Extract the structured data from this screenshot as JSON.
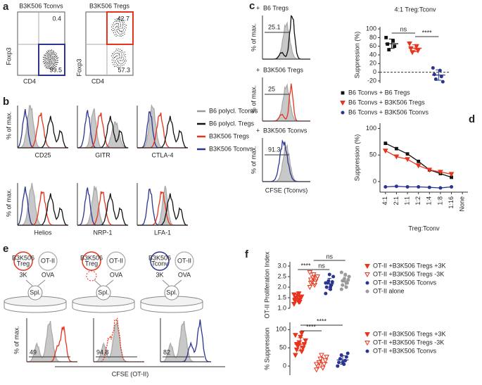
{
  "panel_labels": [
    "a",
    "b",
    "c",
    "d",
    "e",
    "f"
  ],
  "panel_a": {
    "plots": [
      {
        "title": "B3K506 Tconvs",
        "gate_top": 0.4,
        "gate_bottom": 99.5
      },
      {
        "title": "B3K506 Tregs",
        "gate_top": 42.7,
        "gate_bottom": 57.3
      }
    ],
    "ylabel": "Foxp3",
    "xlabel": "CD4"
  },
  "panel_b": {
    "ylabel": "% of max.",
    "markers": [
      "CD25",
      "GITR",
      "CTLA-4",
      "Helios",
      "NRP-1",
      "LFA-1"
    ],
    "legend": [
      {
        "name": "B6 polycl. Tconvs",
        "color": "#9a9a9a"
      },
      {
        "name": "B6 polycl. Tregs",
        "color": "#111111"
      },
      {
        "name": "B3K506  Tregs",
        "color": "#e8341c"
      },
      {
        "name": "B3K506 Tconvs",
        "color": "#2b3590"
      }
    ]
  },
  "panel_c": {
    "plots": [
      {
        "prefix": "+",
        "name": "B6  Tregs",
        "color": "#111111",
        "gate": 25.1
      },
      {
        "prefix": "+",
        "name": "B3K506 Tregs",
        "color": "#e8341c",
        "gate": 25
      },
      {
        "prefix": "+",
        "name": "B3K506 Tconvs",
        "color": "#2b3590",
        "gate": 91.3
      }
    ],
    "ylabel": "% of max.",
    "xlabel": "CFSE (Tconvs)"
  },
  "panel_e": {
    "schemes": [
      {
        "cell_line1": "B3K506",
        "cell_line2": "Treg",
        "cell_color": "#e8341c",
        "peptide": "3K",
        "other": "OT-II",
        "antigen": "OVA",
        "spleen": "Spl.",
        "gate": 49
      },
      {
        "cell_line1": "B3K506",
        "cell_line2": "Treg",
        "cell_color": "#e8341c",
        "other": "OT-II",
        "antigen": "OVA",
        "spleen": "Spl.",
        "gate": 94.8
      },
      {
        "cell_line1": "B3K506",
        "cell_line2": "Tconv",
        "cell_color": "#2b3590",
        "peptide": "3K",
        "other": "OT-II",
        "antigen": "OVA",
        "spleen": "Spl.",
        "gate": 82
      }
    ],
    "ylabel": "% of max.",
    "xlabel": "CFSE (OT-II)"
  },
  "chart_data": [
    {
      "type": "dot",
      "title": "4:1 Treg:Tconv",
      "ylabel": "Suppression (%)",
      "ylim": [
        -25,
        105
      ],
      "yticks": [
        -20,
        0,
        20,
        40,
        60,
        80,
        100
      ],
      "zero_line": true,
      "series": [
        {
          "name": "B6 Tconvs + B6 Tregs",
          "color": "#111111",
          "marker": "square",
          "values": [
            80,
            72,
            65,
            60,
            52
          ]
        },
        {
          "name": "B6 Tconvs + B3K506 Tregs",
          "color": "#e8341c",
          "marker": "triangle",
          "values": [
            66,
            60,
            55,
            50,
            46
          ]
        },
        {
          "name": "B6 Tconvs + B3K506 Tconvs",
          "color": "#2b3590",
          "marker": "circle",
          "values": [
            10,
            4,
            -5,
            -10,
            -16,
            -22
          ]
        }
      ],
      "annotations": [
        "ns",
        "****"
      ]
    },
    {
      "type": "line",
      "ylabel": "Suppression (%)",
      "xlabel": "Treg:Tconv",
      "categories": [
        "4:1",
        "2:1",
        "1:1",
        "1:2",
        "1:4",
        "1:8",
        "1:16",
        "None"
      ],
      "ylim": [
        -20,
        110
      ],
      "yticks": [
        0,
        50,
        100
      ],
      "series": [
        {
          "color": "#111111",
          "marker": "square",
          "values": [
            72,
            62,
            52,
            38,
            22,
            15,
            8,
            null
          ]
        },
        {
          "color": "#e8341c",
          "marker": "triangle",
          "values": [
            58,
            47,
            42,
            30,
            22,
            18,
            14,
            null
          ]
        },
        {
          "color": "#2b3590",
          "marker": "circle",
          "values": [
            -10,
            -9,
            -10,
            -10,
            -11,
            -12,
            -10,
            null
          ]
        }
      ]
    },
    {
      "type": "dot",
      "ylabel": "OT-II Proliferation Index",
      "ylim": [
        1,
        3.2
      ],
      "yticks": [
        {
          "value": 1,
          "label": "1.0"
        },
        1.5,
        {
          "value": 2,
          "label": "2.0"
        },
        2.5,
        {
          "value": 3,
          "label": "3.0"
        }
      ],
      "series": [
        {
          "name": "OT-II +B3K506 Tregs +3K",
          "color": "#e8341c",
          "marker": "triangle",
          "values": [
            1.2,
            1.3,
            1.35,
            1.4,
            1.45,
            1.5,
            1.5,
            1.55,
            1.6,
            1.65,
            1.7,
            1.4,
            1.3
          ]
        },
        {
          "name": "OT-II +B3K506 Tregs -3K",
          "color": "#e8341c",
          "marker": "open-triangle",
          "values": [
            2.0,
            2.1,
            2.2,
            2.3,
            2.3,
            2.4,
            2.45,
            2.5,
            2.6,
            2.7,
            2.2,
            2.35
          ]
        },
        {
          "name": "OT-II +B3K506 Tconvs",
          "color": "#2b3590",
          "marker": "circle",
          "values": [
            1.7,
            1.9,
            2.0,
            2.1,
            2.2,
            2.25,
            2.3,
            2.5,
            2.6,
            2.2,
            2.0
          ]
        },
        {
          "name": "OT-II alone",
          "color": "#9a9a9a",
          "marker": "circle",
          "values": [
            1.9,
            2.0,
            2.1,
            2.2,
            2.3,
            2.35,
            2.4,
            2.5,
            2.6,
            2.7,
            2.2,
            2.3
          ]
        }
      ],
      "annotations": [
        "****",
        "ns",
        "ns"
      ]
    },
    {
      "type": "dot",
      "ylabel": "% Suppression",
      "ylim": [
        -25,
        120
      ],
      "yticks": [
        0,
        50,
        100
      ],
      "series": [
        {
          "name": "OT-II +B3K506 Tregs +3K",
          "color": "#e8341c",
          "marker": "triangle",
          "values": [
            30,
            40,
            45,
            50,
            55,
            60,
            65,
            70,
            80,
            85,
            90,
            60,
            50
          ]
        },
        {
          "name": "OT-II +B3K506 Tregs -3K",
          "color": "#e8341c",
          "marker": "open-triangle",
          "values": [
            -10,
            -5,
            0,
            5,
            10,
            15,
            20,
            25,
            30,
            5
          ]
        },
        {
          "name": "OT-II +B3K506 Tconvs",
          "color": "#2b3590",
          "marker": "circle",
          "values": [
            0,
            5,
            10,
            15,
            20,
            25,
            30,
            35,
            10
          ]
        }
      ],
      "annotations": [
        "****",
        "****"
      ]
    }
  ]
}
